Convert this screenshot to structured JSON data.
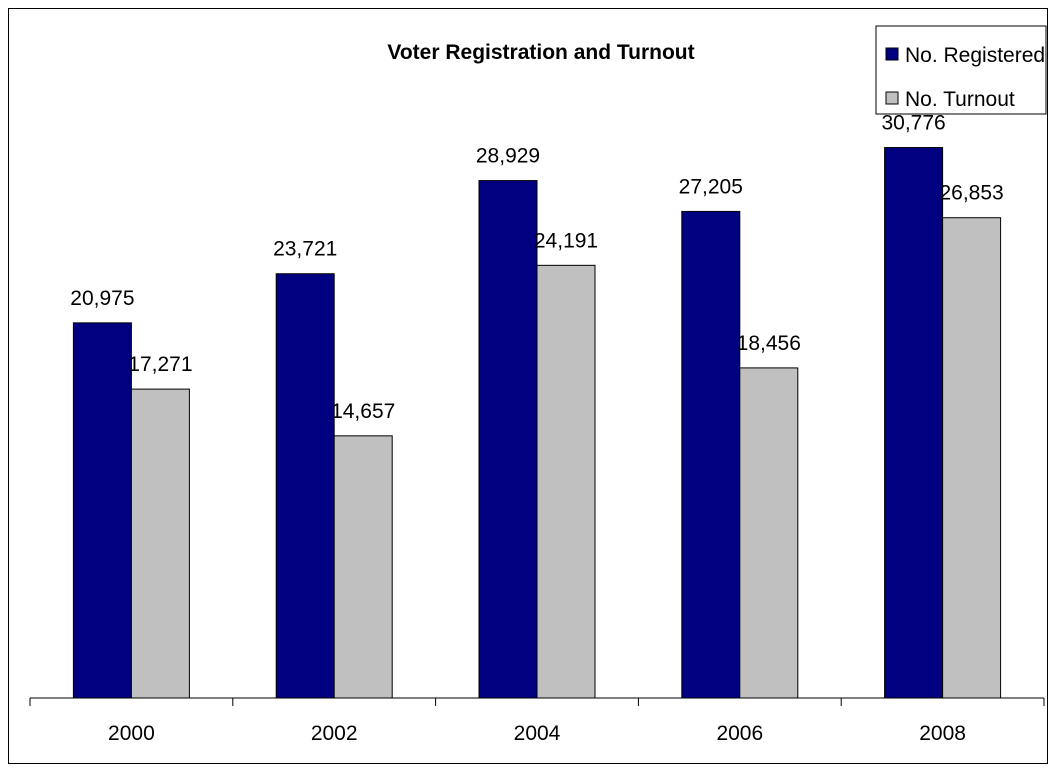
{
  "chart_data": {
    "type": "bar",
    "title": "Voter Registration and Turnout",
    "xlabel": "",
    "ylabel": "",
    "categories": [
      "2000",
      "2002",
      "2004",
      "2006",
      "2008"
    ],
    "series": [
      {
        "name": "No. Registered",
        "color": "#000080",
        "values": [
          20975,
          23721,
          28929,
          27205,
          30776
        ],
        "labels": [
          "20,975",
          "23,721",
          "28,929",
          "27,205",
          "30,776"
        ]
      },
      {
        "name": "No. Turnout",
        "color": "#c0c0c0",
        "values": [
          17271,
          14657,
          24191,
          18456,
          26853
        ],
        "labels": [
          "17,271",
          "14,657",
          "24,191",
          "18,456",
          "26,853"
        ]
      }
    ],
    "ylim": [
      0,
      35000
    ],
    "grid": false,
    "legend_position": "top-right"
  }
}
